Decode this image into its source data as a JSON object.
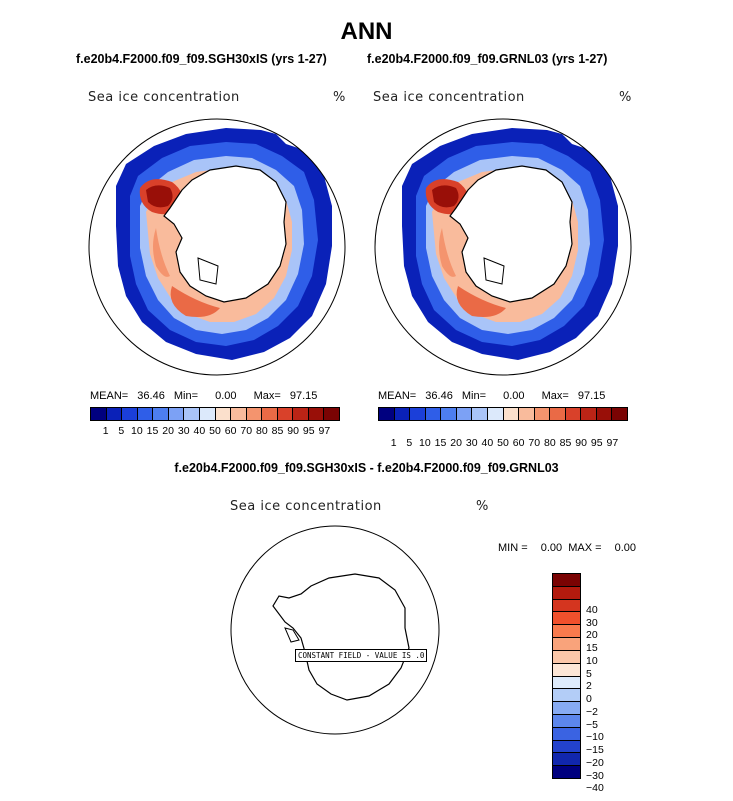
{
  "title": "ANN",
  "panels": [
    {
      "case_title": "f.e20b4.F2000.f09_f09.SGH30xIS (yrs 1-27)",
      "var_label": "Sea ice concentration",
      "units": "%",
      "mean_label": "MEAN=",
      "mean": "36.46",
      "min_label": "Min=",
      "min": "0.00",
      "max_label": "Max=",
      "max": "97.15"
    },
    {
      "case_title": "f.e20b4.F2000.f09_f09.GRNL03 (yrs 1-27)",
      "var_label": "Sea ice concentration",
      "units": "%",
      "mean_label": "MEAN=",
      "mean": "36.46",
      "min_label": "Min=",
      "min": "0.00",
      "max_label": "Max=",
      "max": "97.15"
    }
  ],
  "colorbar": {
    "levels": [
      "1",
      "5",
      "10",
      "15",
      "20",
      "30",
      "40",
      "50",
      "60",
      "70",
      "80",
      "85",
      "90",
      "95",
      "97"
    ],
    "colors": [
      "#00007f",
      "#0a21b8",
      "#1b3fd9",
      "#2f5ee8",
      "#4d7ef0",
      "#7ca1f5",
      "#a9c4f8",
      "#dce9fb",
      "#fbe0cc",
      "#f9bb9c",
      "#f4946e",
      "#ea6a46",
      "#d9412a",
      "#bb2416",
      "#990f08",
      "#7a0303"
    ]
  },
  "diff": {
    "title": "f.e20b4.F2000.f09_f09.SGH30xIS - f.e20b4.F2000.f09_f09.GRNL03",
    "var_label": "Sea ice concentration",
    "units": "%",
    "min_label": "MIN =",
    "min": "0.00",
    "max_label": "MAX =",
    "max": "0.00",
    "constant_label": "CONSTANT FIELD - VALUE IS .0",
    "levels": [
      "40",
      "30",
      "20",
      "15",
      "10",
      "5",
      "2",
      "0",
      "−2",
      "−5",
      "−10",
      "−15",
      "−20",
      "−30",
      "−40"
    ],
    "colors": [
      "#7a0303",
      "#b21a0e",
      "#d4351f",
      "#f0502c",
      "#f87a4d",
      "#f9a37b",
      "#fbc7a9",
      "#fce6d6",
      "#deebfb",
      "#b3cdf7",
      "#87abf3",
      "#5c86ec",
      "#3a63e2",
      "#2342cc",
      "#1127ae",
      "#00007f"
    ]
  }
}
